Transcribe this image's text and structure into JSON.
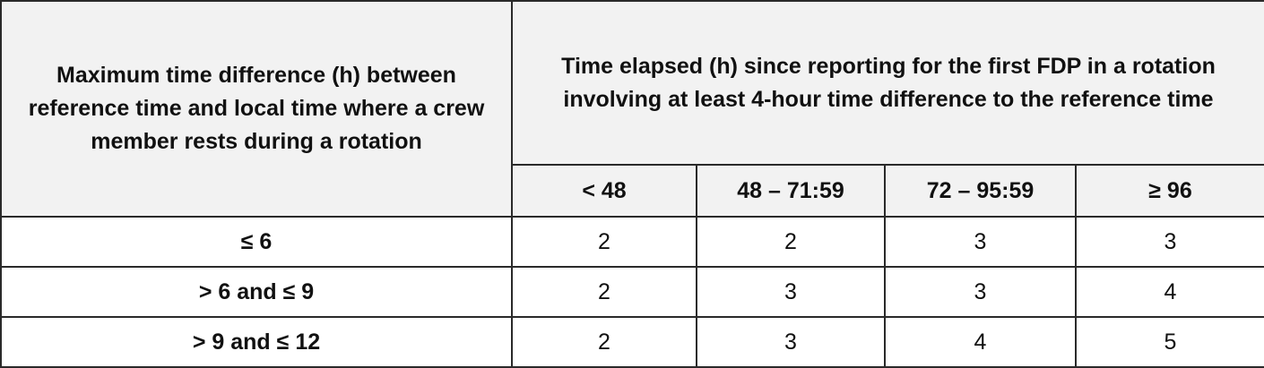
{
  "table": {
    "header": {
      "row_header": "Maximum time difference (h) between reference time and local time where a crew member rests during a rotation",
      "group": "Time elapsed (h) since reporting for the first FDP in a rotation involving at least 4-hour time difference to the reference time",
      "columns": [
        "< 48",
        "48 – 71:59",
        "72 – 95:59",
        "≥ 96"
      ]
    },
    "rows": [
      [
        "≤ 6",
        2,
        2,
        3,
        3
      ],
      [
        "> 6 and ≤ 9",
        2,
        3,
        3,
        4
      ],
      [
        "> 9 and ≤ 12",
        2,
        3,
        4,
        5
      ]
    ]
  }
}
